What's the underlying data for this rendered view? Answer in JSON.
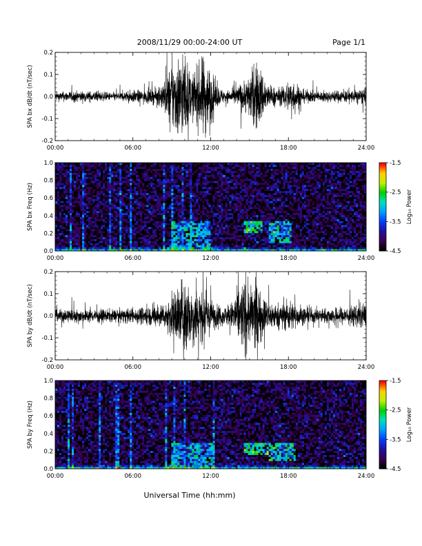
{
  "header": {
    "title": "2008/11/29  00:00-24:00 UT",
    "page": "Page 1/1"
  },
  "footer": {
    "xlabel": "Universal Time (hh:mm)"
  },
  "colors": {
    "trace": "#000000",
    "colormap": [
      "#000000",
      "#3a0050",
      "#2010a0",
      "#0040ff",
      "#00a0ff",
      "#00e0c0",
      "#00d000",
      "#c0f000",
      "#ffd000",
      "#ff0000"
    ]
  },
  "chart_data": [
    {
      "type": "line",
      "id": "bx-dbdt",
      "ylabel": "SPA bx dB/dt (nT/sec)",
      "x_ticks": [
        "00:00",
        "06:00",
        "12:00",
        "18:00",
        "24:00"
      ],
      "y_ticks": [
        "-0.2",
        "-0.1",
        "0.0",
        "0.1",
        "0.2"
      ],
      "xlim": [
        0,
        24
      ],
      "ylim": [
        -0.2,
        0.2
      ],
      "x_unit": "hours UT",
      "amplitude_envelope": {
        "x": [
          0,
          1,
          2,
          3,
          4,
          5,
          6,
          7,
          8,
          8.5,
          9,
          9.5,
          10,
          10.5,
          11,
          11.5,
          12,
          12.5,
          13,
          13.5,
          14,
          14.5,
          15,
          15.5,
          16,
          16.5,
          17,
          17.5,
          18,
          18.5,
          19,
          20,
          21,
          22,
          23,
          24
        ],
        "y": [
          0.02,
          0.025,
          0.025,
          0.025,
          0.02,
          0.02,
          0.03,
          0.03,
          0.04,
          0.09,
          0.16,
          0.2,
          0.2,
          0.1,
          0.14,
          0.2,
          0.13,
          0.05,
          0.03,
          0.03,
          0.045,
          0.07,
          0.1,
          0.17,
          0.12,
          0.05,
          0.045,
          0.04,
          0.08,
          0.08,
          0.035,
          0.025,
          0.025,
          0.03,
          0.03,
          0.04
        ]
      }
    },
    {
      "type": "heatmap",
      "id": "bx-freq",
      "ylabel": "SPA bx Freq (Hz)",
      "x_ticks": [
        "00:00",
        "06:00",
        "12:00",
        "18:00",
        "24:00"
      ],
      "y_ticks": [
        "0.0",
        "0.2",
        "0.4",
        "0.6",
        "0.8",
        "1.0"
      ],
      "xlim": [
        0,
        24
      ],
      "ylim": [
        0,
        1.0
      ],
      "colorbar": {
        "label": "Log₁₀ Power",
        "ticks": [
          "-1.5",
          "-2.5",
          "-3.5",
          "-4.5"
        ],
        "range": [
          -4.5,
          -1.5
        ]
      },
      "vertical_streaks": [
        1.2,
        2.2,
        4.2,
        5.0,
        5.8,
        8.4,
        9.0,
        9.9,
        10.5
      ],
      "enhanced_regions": [
        {
          "t": [
            9,
            12
          ],
          "f": [
            0,
            0.35
          ],
          "level": -2.9
        },
        {
          "t": [
            14.5,
            16
          ],
          "f": [
            0.2,
            0.35
          ],
          "level": -2.5
        },
        {
          "t": [
            16.5,
            18.3
          ],
          "f": [
            0.1,
            0.35
          ],
          "level": -2.9
        }
      ]
    },
    {
      "type": "line",
      "id": "by-dbdt",
      "ylabel": "SPA by dB/dt (nT/sec)",
      "x_ticks": [
        "00:00",
        "06:00",
        "12:00",
        "18:00",
        "24:00"
      ],
      "y_ticks": [
        "-0.2",
        "-0.1",
        "0.0",
        "0.1",
        "0.2"
      ],
      "xlim": [
        0,
        24
      ],
      "ylim": [
        -0.2,
        0.2
      ],
      "x_unit": "hours UT",
      "amplitude_envelope": {
        "x": [
          0,
          1,
          2,
          3,
          4,
          5,
          6,
          7,
          8,
          8.5,
          9,
          9.5,
          10,
          10.5,
          11,
          11.5,
          12,
          12.5,
          13,
          13.5,
          14,
          14.5,
          15,
          15.5,
          16,
          16.5,
          17,
          17.5,
          18,
          18.5,
          19,
          20,
          21,
          22,
          23,
          24
        ],
        "y": [
          0.03,
          0.035,
          0.03,
          0.03,
          0.03,
          0.03,
          0.035,
          0.045,
          0.05,
          0.06,
          0.1,
          0.15,
          0.2,
          0.13,
          0.15,
          0.11,
          0.08,
          0.05,
          0.045,
          0.05,
          0.12,
          0.17,
          0.13,
          0.17,
          0.1,
          0.07,
          0.06,
          0.06,
          0.08,
          0.06,
          0.04,
          0.035,
          0.035,
          0.04,
          0.05,
          0.06
        ]
      }
    },
    {
      "type": "heatmap",
      "id": "by-freq",
      "ylabel": "SPA by Freq (Hz)",
      "x_ticks": [
        "00:00",
        "06:00",
        "12:00",
        "18:00",
        "24:00"
      ],
      "y_ticks": [
        "0.0",
        "0.2",
        "0.4",
        "0.6",
        "0.8",
        "1.0"
      ],
      "xlim": [
        0,
        24
      ],
      "ylim": [
        0,
        1.0
      ],
      "colorbar": {
        "label": "Log₁₀ Power",
        "ticks": [
          "-1.5",
          "-2.5",
          "-3.5",
          "-4.5"
        ],
        "range": [
          -4.5,
          -1.5
        ]
      },
      "vertical_streaks": [
        1.0,
        1.3,
        3.5,
        4.8,
        5.8,
        8.5,
        9.2,
        10.0,
        12.3
      ],
      "enhanced_regions": [
        {
          "t": [
            9,
            12.3
          ],
          "f": [
            0,
            0.3
          ],
          "level": -3.0
        },
        {
          "t": [
            14.5,
            16.5
          ],
          "f": [
            0.15,
            0.3
          ],
          "level": -2.6
        },
        {
          "t": [
            16.5,
            18.5
          ],
          "f": [
            0.1,
            0.3
          ],
          "level": -2.8
        }
      ]
    }
  ]
}
